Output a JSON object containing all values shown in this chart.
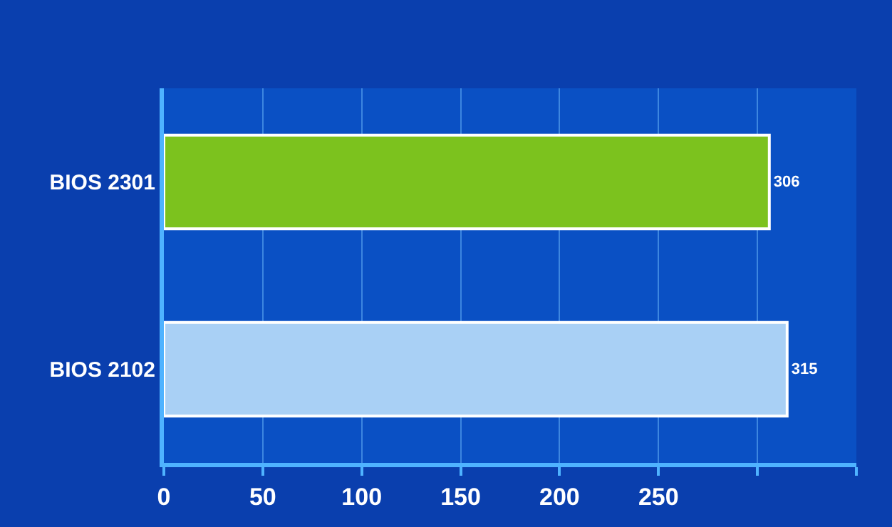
{
  "chart_data": {
    "type": "bar",
    "orientation": "horizontal",
    "categories": [
      "BIOS 2301",
      "BIOS 2102"
    ],
    "values": [
      306,
      315
    ],
    "colors": [
      "#7cc21e",
      "#a9d0f5"
    ],
    "xlim": [
      0,
      350
    ],
    "xticks": [
      0,
      50,
      100,
      150,
      200,
      250,
      {
        "value": 300,
        "label": null
      },
      {
        "value": 350,
        "label": null
      }
    ],
    "grid": "x",
    "data_labels": true
  }
}
